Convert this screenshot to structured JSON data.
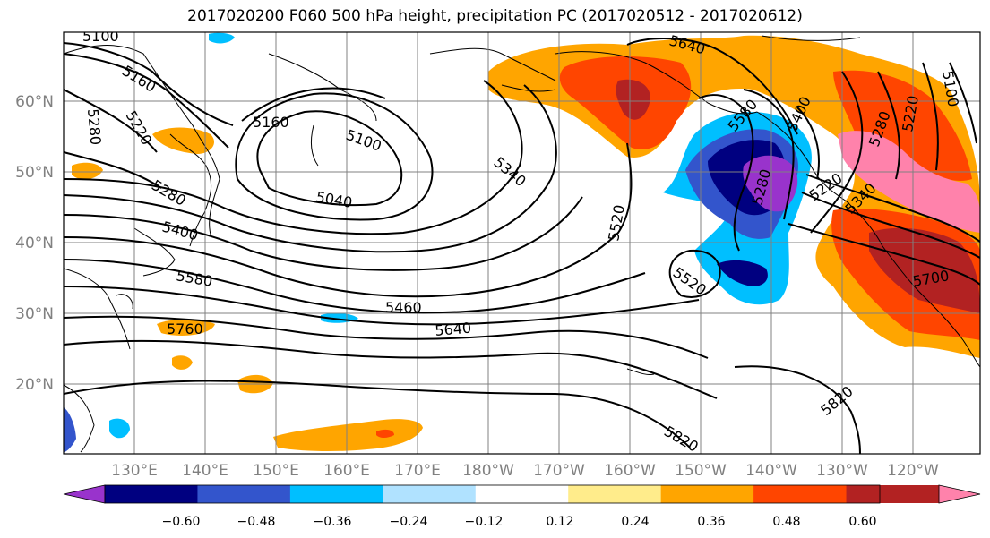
{
  "title": "2017020200 F060 500 hPa height, precipitation PC (2017020512 - 2017020612)",
  "lat_labels": [
    "60°N",
    "50°N",
    "40°N",
    "30°N",
    "20°N"
  ],
  "lon_labels": [
    "130°E",
    "140°E",
    "150°E",
    "160°E",
    "170°E",
    "180°W",
    "170°W",
    "160°W",
    "150°W",
    "140°W",
    "130°W",
    "120°W"
  ],
  "contour_labels": [
    "5100",
    "5160",
    "5220",
    "5280",
    "5160",
    "5100",
    "5040",
    "5340",
    "5280",
    "5400",
    "5580",
    "5760",
    "5460",
    "5640",
    "5520",
    "5520",
    "5640",
    "5580",
    "5280",
    "5220",
    "5280",
    "5340",
    "5220",
    "5100",
    "5700",
    "5820",
    "5820",
    "5400"
  ],
  "colorbar": {
    "colors": [
      "#9933cc",
      "#000080",
      "#3355cc",
      "#00bfff",
      "#b0e2ff",
      "#ffffff",
      "#ffec8b",
      "#ffa500",
      "#ff4500",
      "#b22222",
      "#ff82ab"
    ],
    "tick_labels": [
      "−0.60",
      "−0.48",
      "−0.36",
      "−0.24",
      "−0.12",
      "0.12",
      "0.24",
      "0.36",
      "0.48",
      "0.60"
    ]
  }
}
